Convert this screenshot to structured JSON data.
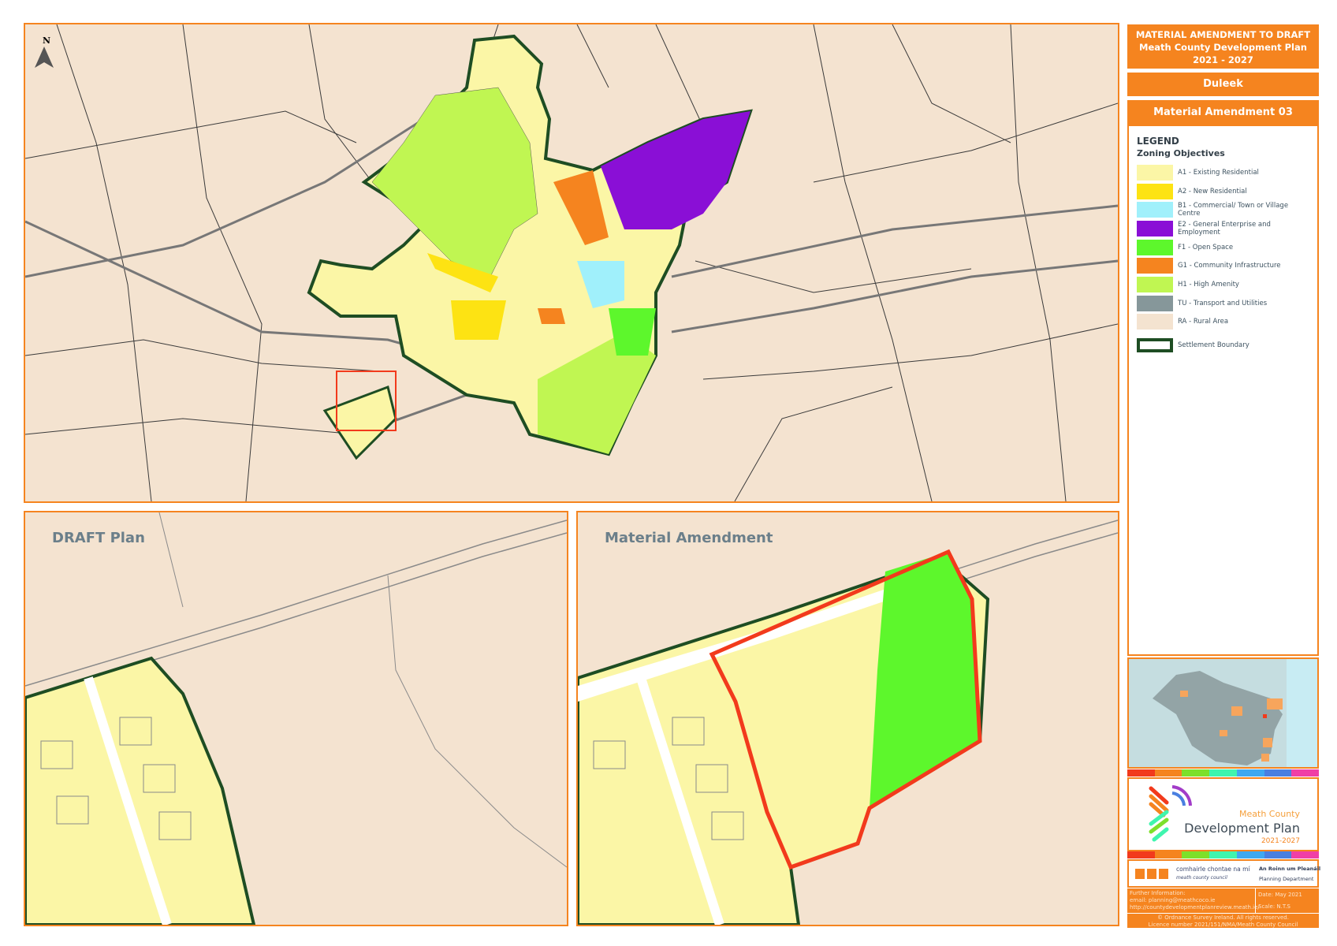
{
  "header": {
    "title_line1": "MATERIAL AMENDMENT TO DRAFT",
    "title_line2": "Meath County Development Plan",
    "title_line3": "2021 - 2027",
    "settlement": "Duleek",
    "amendment": "Material Amendment 03"
  },
  "map": {
    "north_label": "N",
    "panel_draft": "DRAFT Plan",
    "panel_amendment": "Material Amendment"
  },
  "legend": {
    "heading": "LEGEND",
    "subheading": "Zoning Objectives",
    "items": [
      {
        "label": "A1 - Existing Residential",
        "color": "#fbf6a6"
      },
      {
        "label": "A2 - New Residential",
        "color": "#fde313"
      },
      {
        "label": "B1 - Commercial/ Town or Village Centre",
        "color": "#a0f0fb"
      },
      {
        "label": "E2 - General Enterprise and Employment",
        "color": "#8a0fd6"
      },
      {
        "label": "F1 - Open Space",
        "color": "#5df72c"
      },
      {
        "label": "G1 - Community Infrastructure",
        "color": "#f5841f"
      },
      {
        "label": "H1 - High Amenity",
        "color": "#c0f652"
      },
      {
        "label": "TU - Transport and Utilities",
        "color": "#86979a"
      },
      {
        "label": "RA - Rural Area",
        "color": "#f4e3d0"
      },
      {
        "label": "Settlement Boundary",
        "color": "#1e4d23"
      }
    ]
  },
  "branding": {
    "logo_line1": "Meath County",
    "logo_line2": "Development Plan",
    "logo_line3": "2021-2027",
    "council_irish": "comhairle chontae na mí",
    "council_english": "meath county council",
    "dept_irish": "An Roinn um Pleanáil",
    "dept_english": "Planning Department"
  },
  "footer": {
    "info_label": "Further Information:",
    "email": "email: planning@meathcoco.ie",
    "url": "http://countydevelopmentplanreview.meath.ie/",
    "date": "Date: May 2021",
    "scale": "Scale: N.T.S",
    "copyright": "© Ordnance Survey Ireland. All rights reserved.",
    "licence": "Licence number 2021/151/NMA/Meath County Council"
  },
  "colors": {
    "accent": "#f5841f",
    "amendment_outline": "#f23a1c",
    "boundary": "#1e4d23"
  }
}
